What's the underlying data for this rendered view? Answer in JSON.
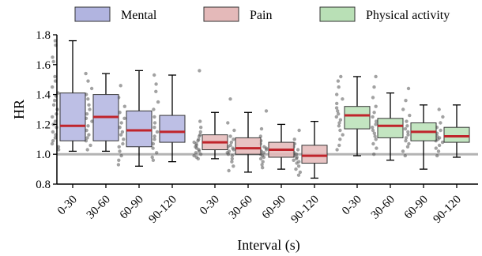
{
  "chart_data": {
    "type": "box",
    "title": "",
    "xlabel": "Interval (s)",
    "ylabel": "HR",
    "ylim": [
      0.8,
      1.8
    ],
    "yticks": [
      0.8,
      1.0,
      1.2,
      1.4,
      1.6,
      1.8
    ],
    "reference_line": 1.0,
    "reference_line_color": "#b3b3b3",
    "legend_position": "top",
    "categories": [
      "0-30",
      "30-60",
      "60-90",
      "90-120"
    ],
    "series": [
      {
        "name": "Mental",
        "color": "#b1b4e0",
        "boxes": [
          {
            "min": 1.02,
            "q1": 1.09,
            "median": 1.19,
            "q3": 1.41,
            "max": 1.76
          },
          {
            "min": 1.02,
            "q1": 1.09,
            "median": 1.25,
            "q3": 1.4,
            "max": 1.54
          },
          {
            "min": 0.92,
            "q1": 1.05,
            "median": 1.16,
            "q3": 1.29,
            "max": 1.56
          },
          {
            "min": 0.95,
            "q1": 1.08,
            "median": 1.15,
            "q3": 1.26,
            "max": 1.53
          }
        ]
      },
      {
        "name": "Pain",
        "color": "#e4b9b9",
        "boxes": [
          {
            "min": 0.97,
            "q1": 1.03,
            "median": 1.08,
            "q3": 1.13,
            "max": 1.28
          },
          {
            "min": 0.88,
            "q1": 1.0,
            "median": 1.04,
            "q3": 1.11,
            "max": 1.28
          },
          {
            "min": 0.9,
            "q1": 0.98,
            "median": 1.03,
            "q3": 1.08,
            "max": 1.2
          },
          {
            "min": 0.84,
            "q1": 0.94,
            "median": 0.99,
            "q3": 1.06,
            "max": 1.22
          }
        ]
      },
      {
        "name": "Physical activity",
        "color": "#b9e0b6",
        "boxes": [
          {
            "min": 0.99,
            "q1": 1.17,
            "median": 1.26,
            "q3": 1.32,
            "max": 1.52
          },
          {
            "min": 0.96,
            "q1": 1.11,
            "median": 1.19,
            "q3": 1.24,
            "max": 1.41
          },
          {
            "min": 0.9,
            "q1": 1.09,
            "median": 1.15,
            "q3": 1.21,
            "max": 1.33
          },
          {
            "min": 0.98,
            "q1": 1.08,
            "median": 1.12,
            "q3": 1.18,
            "max": 1.33
          }
        ]
      }
    ],
    "median_color": "#c0242b",
    "scatter_points": [
      [
        [
          1.76,
          1.73,
          1.65,
          1.62,
          1.52,
          1.49,
          1.45,
          1.41,
          1.39,
          1.36,
          1.33,
          1.3,
          1.27,
          1.25,
          1.22,
          1.2,
          1.18,
          1.15,
          1.13,
          1.11,
          1.09,
          1.07,
          1.05,
          1.03
        ],
        [
          1.54,
          1.49,
          1.44,
          1.4,
          1.37,
          1.33,
          1.3,
          1.27,
          1.24,
          1.22,
          1.19,
          1.16,
          1.13,
          1.11,
          1.09,
          1.06,
          1.03
        ],
        [
          1.46,
          1.38,
          1.32,
          1.28,
          1.24,
          1.21,
          1.18,
          1.15,
          1.13,
          1.1,
          1.07,
          1.05,
          1.02,
          0.99,
          0.96,
          0.93
        ],
        [
          1.53,
          1.47,
          1.42,
          1.35,
          1.3,
          1.25,
          1.21,
          1.18,
          1.15,
          1.12,
          1.1,
          1.07,
          1.04,
          1.01,
          0.98,
          0.96
        ]
      ],
      [
        [
          1.56,
          1.22,
          1.18,
          1.15,
          1.13,
          1.12,
          1.1,
          1.09,
          1.08,
          1.07,
          1.06,
          1.05,
          1.04,
          1.03,
          1.02,
          1.01,
          1.0,
          0.99,
          0.98,
          0.97
        ],
        [
          1.37,
          1.21,
          1.16,
          1.12,
          1.1,
          1.08,
          1.06,
          1.05,
          1.04,
          1.03,
          1.02,
          1.01,
          1.0,
          0.99,
          0.97,
          0.95,
          0.92,
          0.89
        ],
        [
          1.29,
          1.17,
          1.12,
          1.09,
          1.07,
          1.05,
          1.04,
          1.03,
          1.02,
          1.01,
          1.0,
          0.99,
          0.98,
          0.97,
          0.95,
          0.93,
          0.91
        ],
        [
          1.16,
          1.1,
          1.07,
          1.05,
          1.03,
          1.01,
          1.0,
          0.99,
          0.98,
          0.97,
          0.96,
          0.95,
          0.94,
          0.92,
          0.9,
          0.88,
          0.86
        ]
      ],
      [
        [
          1.52,
          1.49,
          1.45,
          1.4,
          1.37,
          1.34,
          1.31,
          1.29,
          1.27,
          1.25,
          1.23,
          1.21,
          1.19,
          1.16,
          1.13,
          1.1,
          1.06,
          1.03
        ],
        [
          1.52,
          1.45,
          1.38,
          1.32,
          1.28,
          1.25,
          1.22,
          1.2,
          1.18,
          1.16,
          1.14,
          1.12,
          1.1,
          1.07,
          1.04,
          1.0
        ],
        [
          1.44,
          1.36,
          1.3,
          1.26,
          1.22,
          1.19,
          1.17,
          1.15,
          1.13,
          1.11,
          1.09,
          1.07,
          1.05,
          1.02,
          0.99
        ],
        [
          1.3,
          1.25,
          1.21,
          1.18,
          1.16,
          1.14,
          1.12,
          1.11,
          1.1,
          1.09,
          1.08,
          1.06,
          1.04,
          1.02,
          0.99
        ]
      ]
    ]
  }
}
